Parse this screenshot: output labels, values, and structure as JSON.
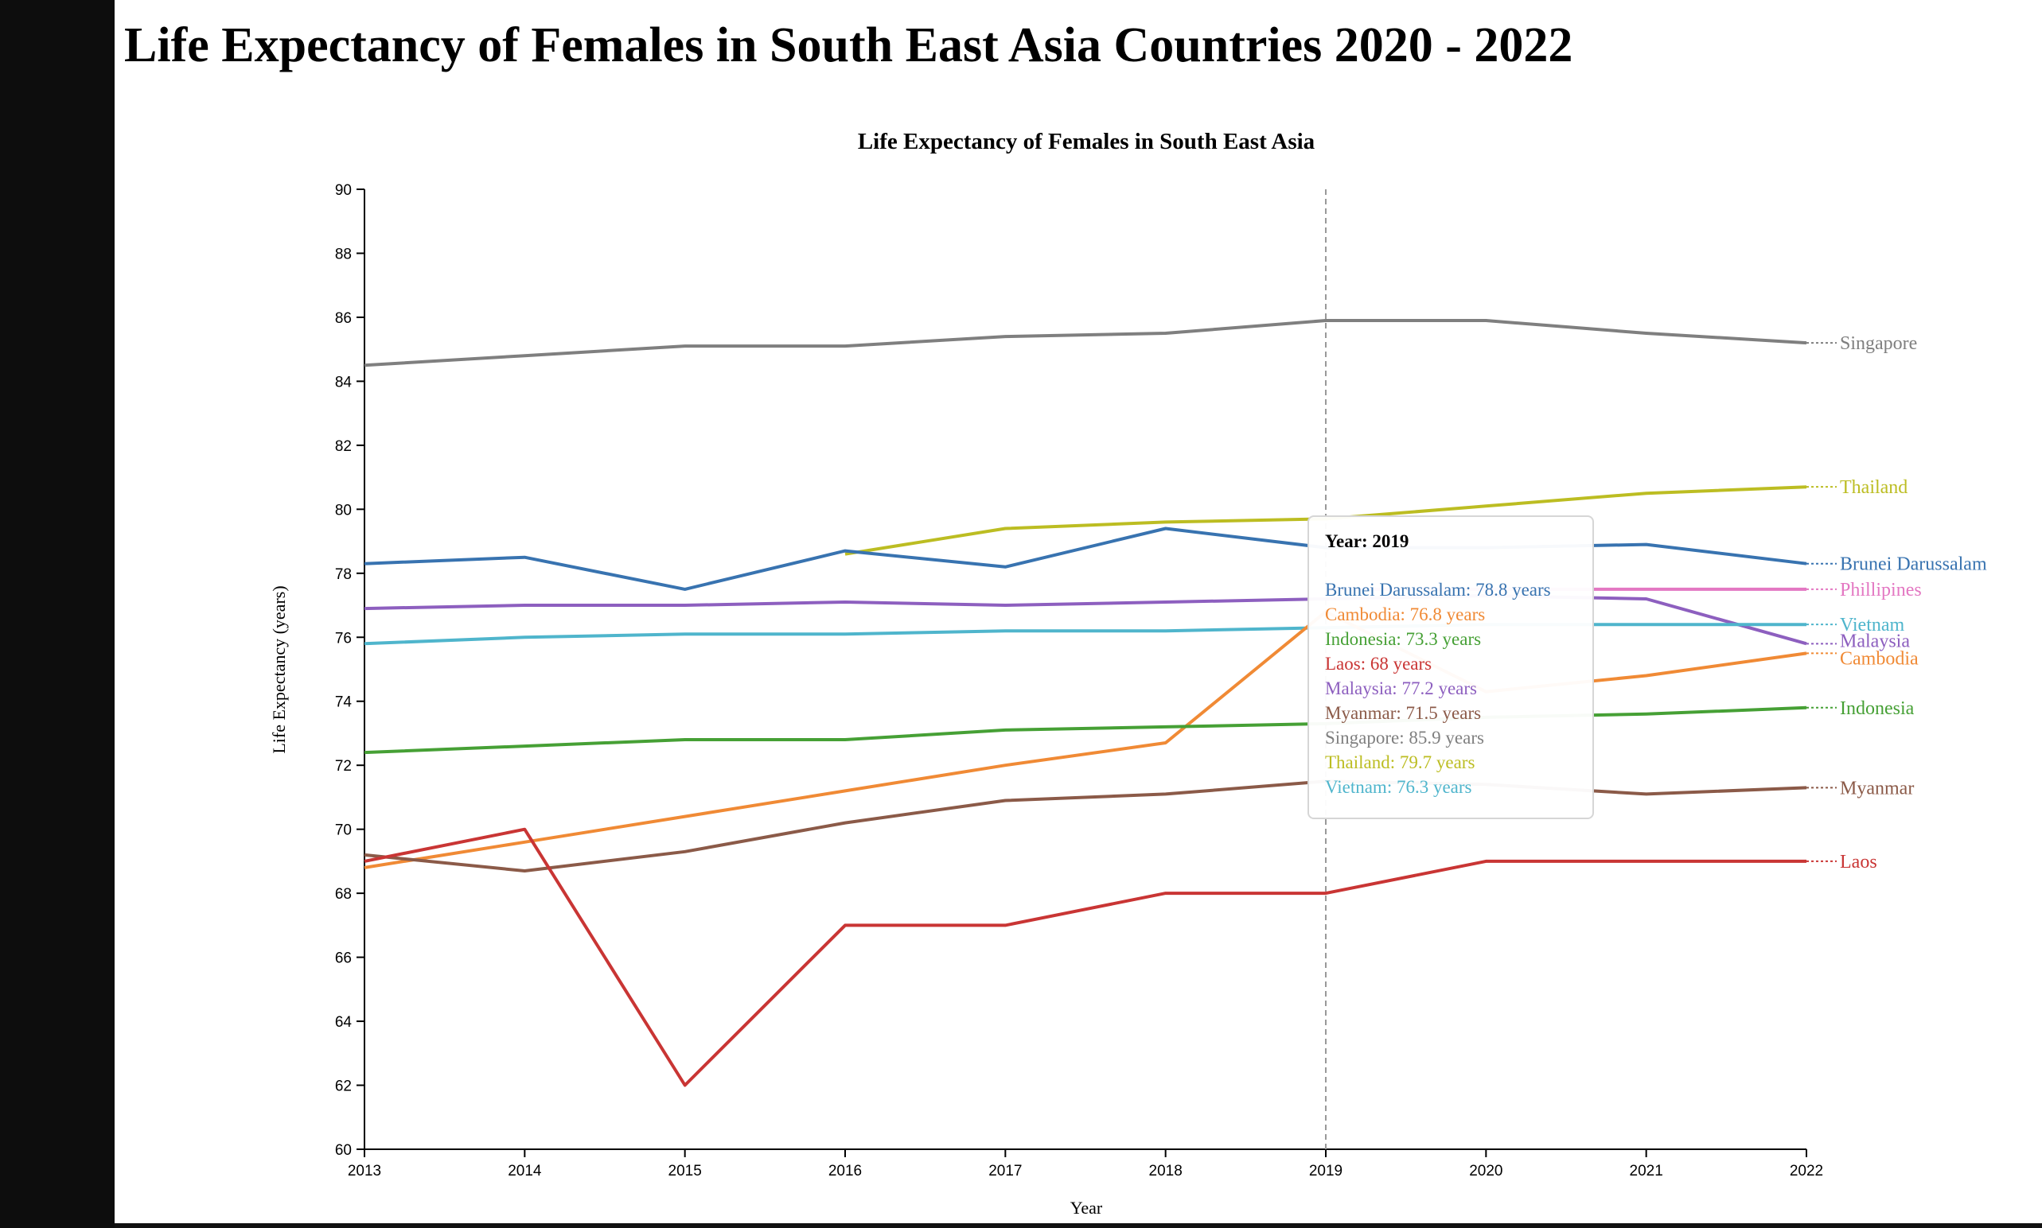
{
  "page": {
    "title": "Life Expectancy of Females in South East Asia Countries 2020 - 2022"
  },
  "tooltip": {
    "year_label": "Year: 2019",
    "rows": [
      "Brunei Darussalam: 78.8 years",
      "Cambodia: 76.8 years",
      "Indonesia: 73.3 years",
      "Laos: 68 years",
      "Malaysia: 77.2 years",
      "Myanmar: 71.5 years",
      "Singapore: 85.9 years",
      "Thailand: 79.7 years",
      "Vietnam: 76.3 years"
    ]
  },
  "chart_data": {
    "type": "line",
    "title": "Life Expectancy of Females in South East Asia",
    "xlabel": "Year",
    "ylabel": "Life Expectancy (years)",
    "x": [
      2013,
      2014,
      2015,
      2016,
      2017,
      2018,
      2019,
      2020,
      2021,
      2022
    ],
    "xlim": [
      2013,
      2022
    ],
    "ylim": [
      60,
      90
    ],
    "yticks": [
      60,
      62,
      64,
      66,
      68,
      70,
      72,
      74,
      76,
      78,
      80,
      82,
      84,
      86,
      88,
      90
    ],
    "grid": false,
    "hover_year": 2019,
    "series": [
      {
        "name": "Singapore",
        "color": "#7f7f7f",
        "values": [
          84.5,
          84.8,
          85.1,
          85.1,
          85.4,
          85.5,
          85.9,
          85.9,
          85.5,
          85.2
        ]
      },
      {
        "name": "Thailand",
        "color": "#bcbd22",
        "values": [
          null,
          null,
          null,
          78.6,
          79.4,
          79.6,
          79.7,
          80.1,
          80.5,
          80.7
        ]
      },
      {
        "name": "Brunei Darussalam",
        "color": "#3873b0",
        "values": [
          78.3,
          78.5,
          77.5,
          78.7,
          78.2,
          79.4,
          78.8,
          78.8,
          78.9,
          78.3
        ]
      },
      {
        "name": "Phillipines",
        "color": "#e377c2",
        "values": [
          null,
          null,
          null,
          null,
          null,
          null,
          77.5,
          77.5,
          77.5,
          77.5
        ]
      },
      {
        "name": "Malaysia",
        "color": "#8d5fbf",
        "values": [
          76.9,
          77.0,
          77.0,
          77.1,
          77.0,
          77.1,
          77.2,
          77.3,
          77.2,
          75.8
        ]
      },
      {
        "name": "Vietnam",
        "color": "#4fb5cc",
        "values": [
          75.8,
          76.0,
          76.1,
          76.1,
          76.2,
          76.2,
          76.3,
          76.4,
          76.4,
          76.4
        ]
      },
      {
        "name": "Cambodia",
        "color": "#f08a35",
        "values": [
          68.8,
          69.6,
          70.4,
          71.2,
          72.0,
          72.7,
          76.8,
          74.3,
          74.8,
          75.5
        ]
      },
      {
        "name": "Indonesia",
        "color": "#46a035",
        "values": [
          72.4,
          72.6,
          72.8,
          72.8,
          73.1,
          73.2,
          73.3,
          73.5,
          73.6,
          73.8
        ]
      },
      {
        "name": "Myanmar",
        "color": "#8b5a48",
        "values": [
          69.2,
          68.7,
          69.3,
          70.2,
          70.9,
          71.1,
          71.5,
          71.4,
          71.1,
          71.3
        ]
      },
      {
        "name": "Laos",
        "color": "#c93534",
        "values": [
          69.0,
          70.0,
          62.0,
          67.0,
          67.0,
          68.0,
          68.0,
          69.0,
          69.0,
          69.0
        ]
      }
    ]
  }
}
